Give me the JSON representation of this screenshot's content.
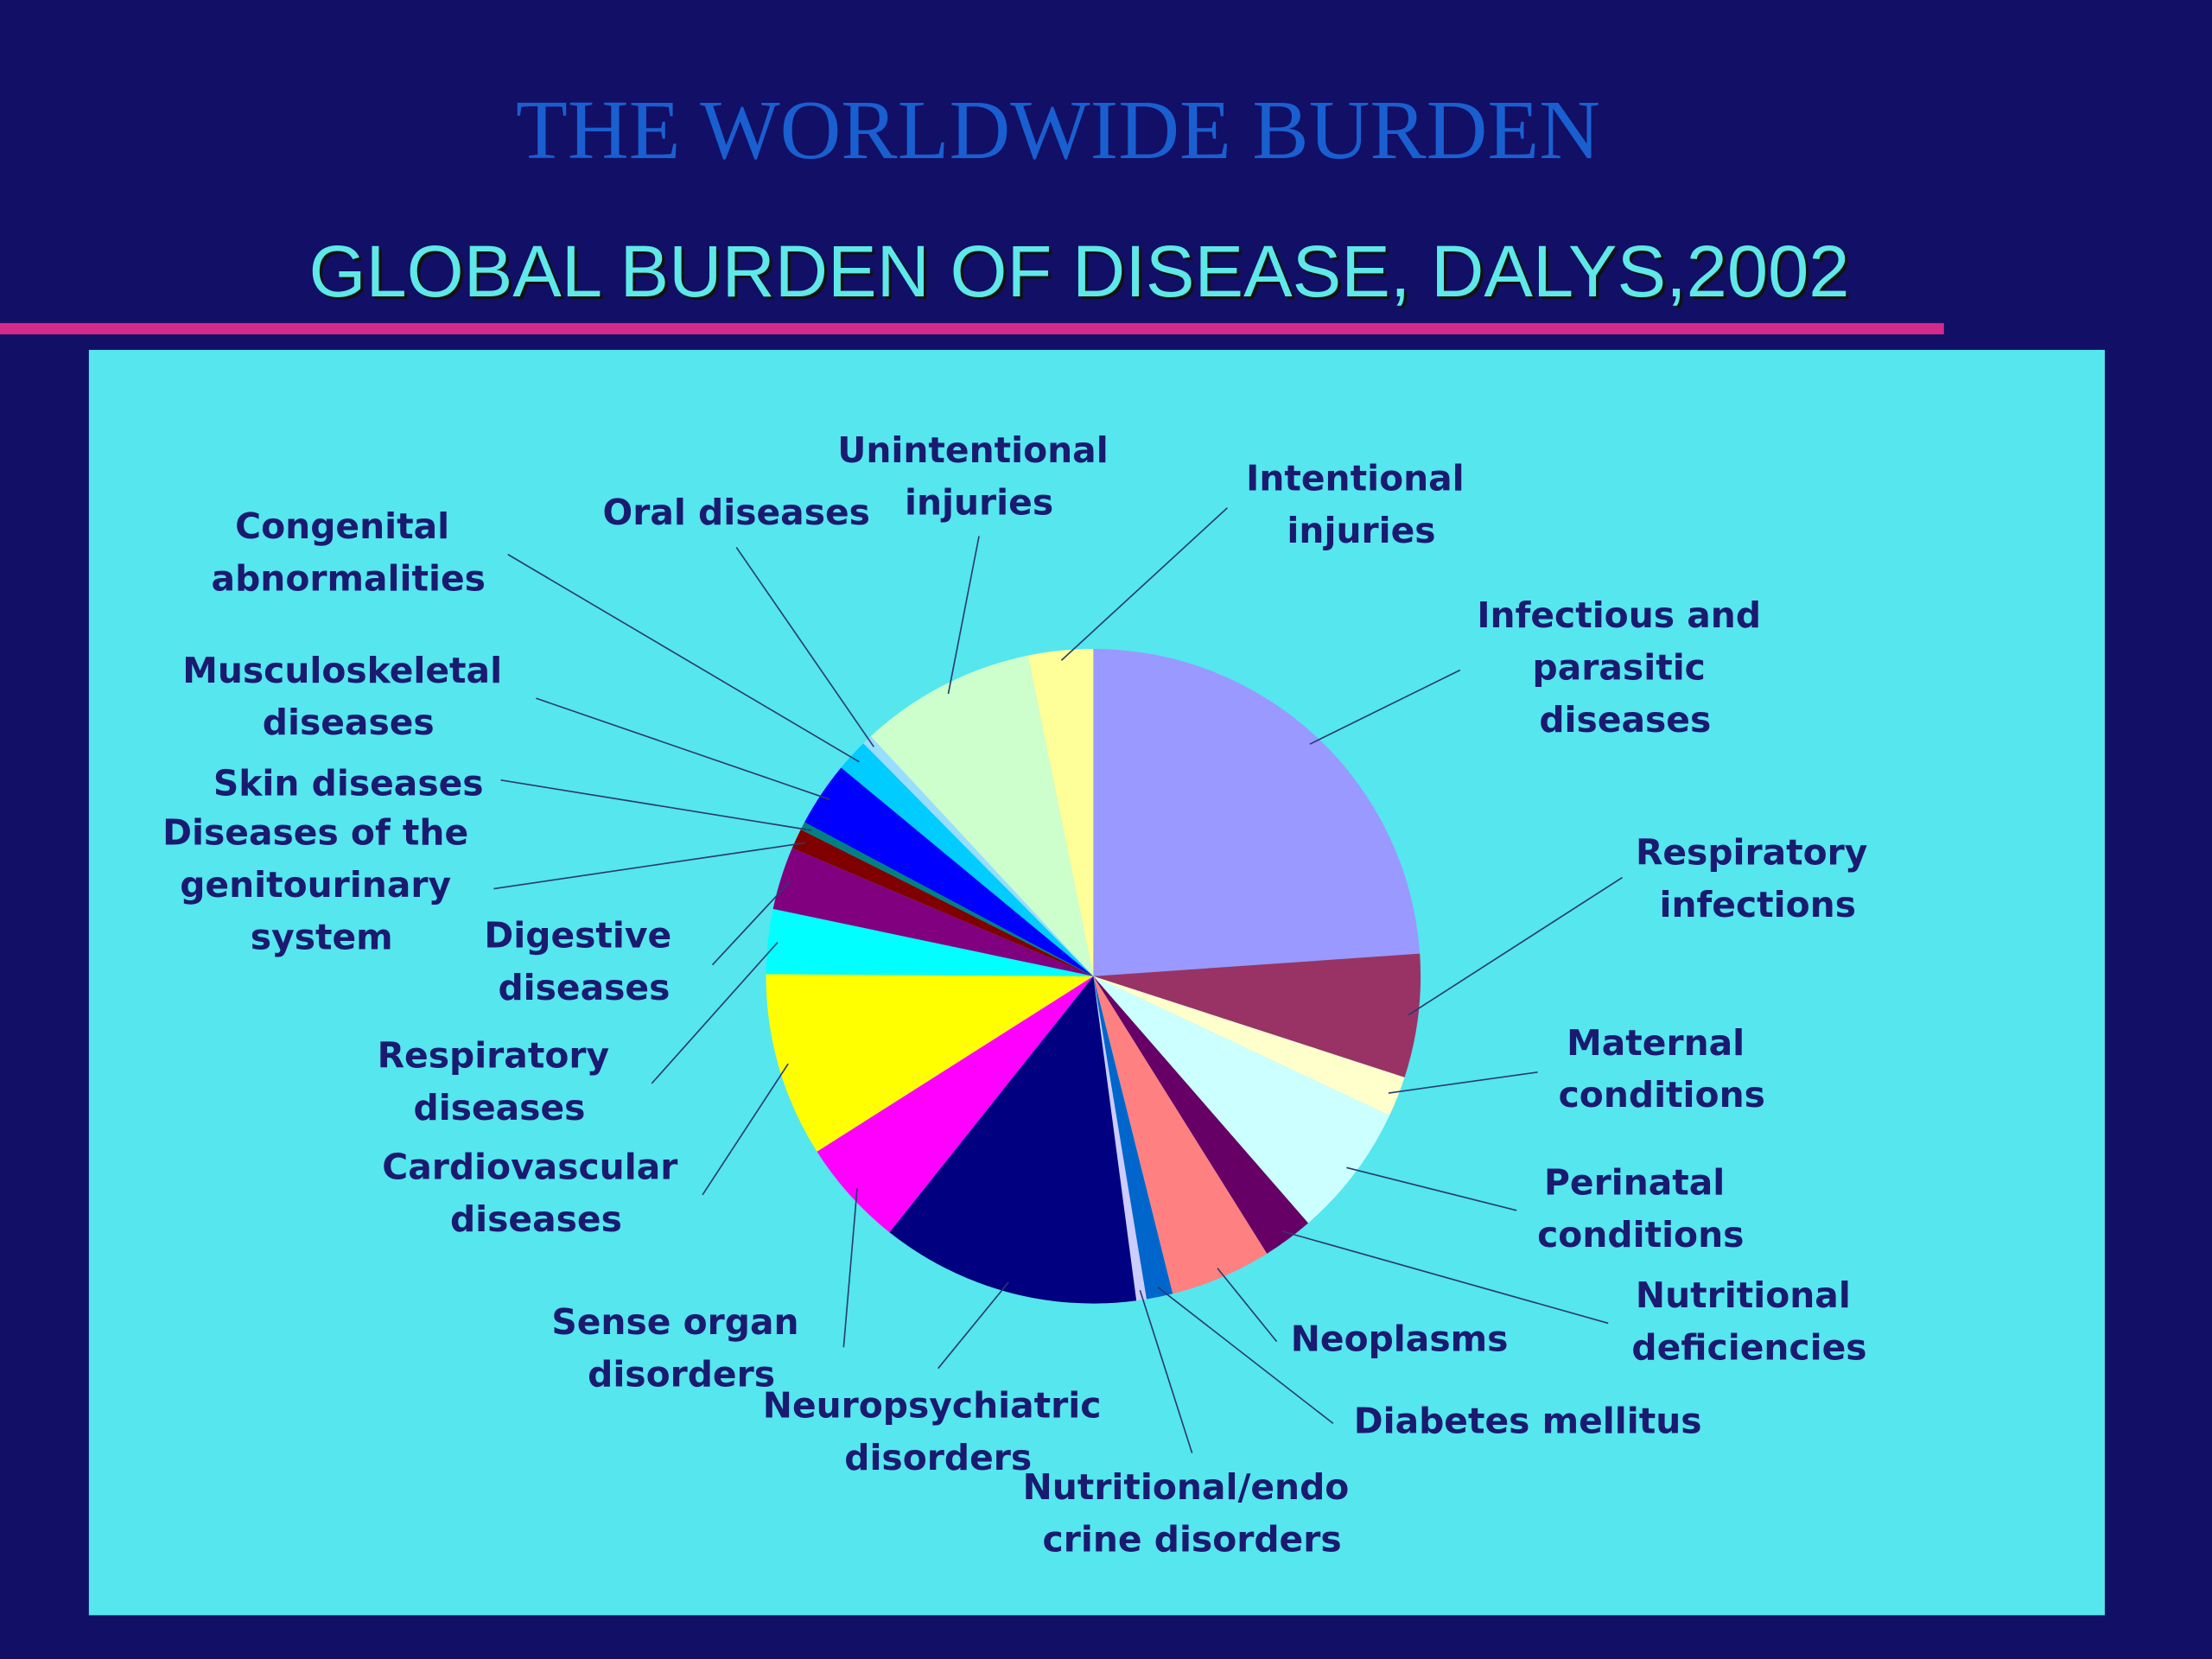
{
  "header": {
    "title": "THE WORLDWIDE BURDEN"
  },
  "chart_data": {
    "type": "pie",
    "title": "GLOBAL BURDEN OF DISEASE, DALYS,2002",
    "categories": [
      "Infectious and parasitic diseases",
      "Respiratory infections",
      "Maternal conditions",
      "Perinatal conditions",
      "Nutritional deficiencies",
      "Neoplasms",
      "Diabetes mellitus",
      "Nutritional/endo crine disorders",
      "Neuropsychiatric disorders",
      "Sense organ disorders",
      "Cardiovascular diseases",
      "Respiratory diseases",
      "Digestive diseases",
      "Diseases of the genitourinary system",
      "Skin diseases",
      "Musculoskeletal diseases",
      "Congenital abnormalities",
      "Oral diseases",
      "Unintentional injuries",
      "Intentional injuries"
    ],
    "values": [
      23.9,
      6.1,
      2,
      6.6,
      2.5,
      5,
      1.3,
      0.5,
      12.8,
      5.3,
      9.1,
      3.2,
      3.1,
      1,
      0.4,
      3.2,
      1.6,
      0.5,
      8.7,
      3.2
    ],
    "colors": [
      "#9999ff",
      "#993366",
      "#ffffcc",
      "#ccffff",
      "#660066",
      "#ff8080",
      "#0066cc",
      "#ccccff",
      "#000080",
      "#ff00ff",
      "#ffff00",
      "#00ffff",
      "#800080",
      "#800000",
      "#008080",
      "#0000ff",
      "#00ccff",
      "#99ddff",
      "#ccffcc",
      "#ffff99"
    ]
  }
}
